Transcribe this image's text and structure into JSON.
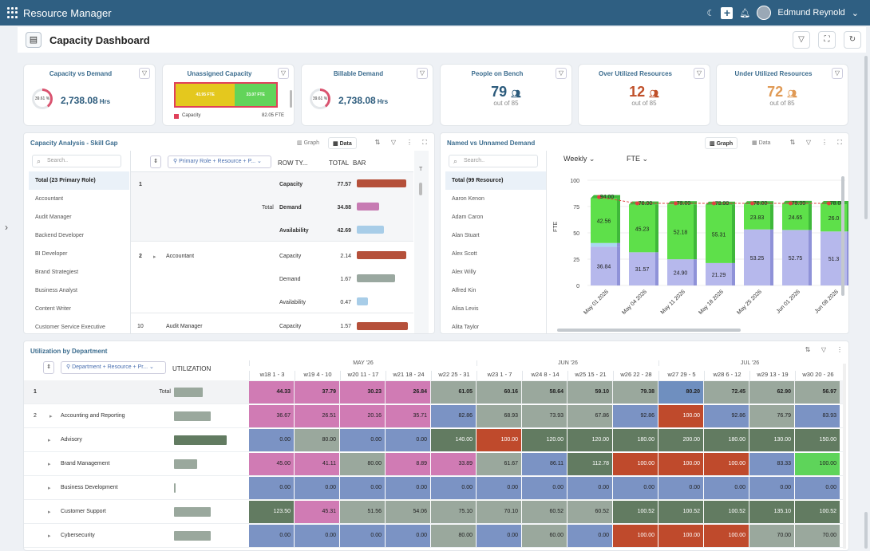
{
  "app": {
    "title": "Resource Manager",
    "user": "Edmund Reynold"
  },
  "page": {
    "title": "Capacity Dashboard"
  },
  "kpis": {
    "capacity_vs_demand": {
      "title": "Capacity vs Demand",
      "donut": "39.61 %",
      "value": "2,738.08",
      "unit": "Hrs"
    },
    "unassigned": {
      "title": "Unassigned Capacity",
      "left": "43.95 FTE",
      "right": "33.07 FTE",
      "legend": "Capacity",
      "legend_value": "82.05 FTE"
    },
    "billable": {
      "title": "Billable Demand",
      "donut": "39.61 %",
      "value": "2,738.08",
      "unit": "Hrs"
    },
    "bench": {
      "title": "People on Bench",
      "value": "79",
      "sub": "out of 85",
      "color": "#2c5b7c"
    },
    "over": {
      "title": "Over Utilized Resources",
      "value": "12",
      "sub": "out of 85",
      "color": "#c0502a"
    },
    "under": {
      "title": "Under Utilized Resources",
      "value": "72",
      "sub": "out of 85",
      "color": "#e09a55"
    }
  },
  "skill_gap": {
    "title": "Capacity Analysis - Skill Gap",
    "graph_label": "Graph",
    "data_label": "Data",
    "search_placeholder": "Search..",
    "roles": [
      "Total (23 Primary Role)",
      "Accountant",
      "Audit Manager",
      "Backend Developer",
      "BI Developer",
      "Brand Strategiest",
      "Business Analyst",
      "Content Writer",
      "Customer Service Executive"
    ],
    "pivot_chip": "Primary Role + Resource + P...",
    "col_row_type": "ROW TY...",
    "col_total": "TOTAL",
    "col_bar": "BAR",
    "row1": {
      "idx": "1",
      "label": "Total",
      "items": [
        {
          "type": "Capacity",
          "value": "77.57",
          "bar": 77.57,
          "color": "#b5503a"
        },
        {
          "type": "Demand",
          "value": "34.88",
          "bar": 34.88,
          "color": "#c77bb3"
        },
        {
          "type": "Availability",
          "value": "42.69",
          "bar": 42.69,
          "color": "#a8cde8"
        }
      ]
    },
    "row2": {
      "idx": "2",
      "label": "Accountant",
      "items": [
        {
          "type": "Capacity",
          "value": "2.14",
          "bar": 77,
          "color": "#b5503a"
        },
        {
          "type": "Demand",
          "value": "1.67",
          "bar": 60,
          "color": "#9aa8a0"
        },
        {
          "type": "Availability",
          "value": "0.47",
          "bar": 17,
          "color": "#a8cde8"
        }
      ]
    },
    "row3": {
      "idx": "10",
      "label": "Audit Manager",
      "type": "Capacity",
      "value": "1.57"
    }
  },
  "named": {
    "title": "Named vs Unnamed Demand",
    "graph_label": "Graph",
    "data_label": "Data",
    "search_placeholder": "Search..",
    "resources": [
      "Total (99 Resource)",
      "Aaron Kenon",
      "Adam Caron",
      "Alan Stuart",
      "Alex Scott",
      "Alex Willy",
      "Alfred Kin",
      "Alisa Levis",
      "Alita Taylor"
    ],
    "period": "Weekly",
    "measure": "FTE"
  },
  "chart_data": {
    "type": "bar",
    "ylabel": "FTE",
    "ylim": [
      0,
      100
    ],
    "yticks": [
      0,
      25,
      50,
      75,
      100
    ],
    "categories": [
      "May 01 2026",
      "May 04 2026",
      "May 11 2026",
      "May 18 2026",
      "May 25 2026",
      "Jun 01 2026",
      "Jun 08 2026"
    ],
    "series": [
      {
        "values": [
          36.84,
          31.57,
          24.9,
          21.29,
          53.25,
          52.75,
          51.3
        ],
        "color": "#b6b8ec"
      },
      {
        "values": [
          3.5,
          0,
          0,
          0,
          0,
          0,
          0
        ],
        "color": "#a9d8f0"
      },
      {
        "values": [
          42.56,
          45.23,
          52.18,
          55.31,
          23.83,
          24.65,
          26.0
        ],
        "color": "#5ee04a"
      }
    ],
    "line": {
      "values": [
        84.0,
        78.0,
        78.0,
        78.0,
        78.0,
        78.0,
        78.0
      ],
      "color": "#e04040"
    },
    "labels": {
      "bottom": [
        "36.84",
        "31.57",
        "24.90",
        "21.29",
        "53.25",
        "52.75",
        "51.3"
      ],
      "top": [
        "42.56",
        "45.23",
        "52.18",
        "55.31",
        "23.83",
        "24.65",
        "26.0"
      ],
      "line": [
        "84.00",
        "78.00",
        "78.00",
        "78.00",
        "78.00",
        "78.00",
        "78.00"
      ]
    }
  },
  "utilization": {
    "title": "Utilization by Department",
    "pivot_chip": "Department + Resource + Pr...",
    "col": "UTILIZATION",
    "months": [
      "MAY '26",
      "JUN '26",
      "JUL '26"
    ],
    "weeks": [
      "w18 1 - 3",
      "w19 4 - 10",
      "w20 11 - 17",
      "w21 18 - 24",
      "w22 25 - 31",
      "w23 1 - 7",
      "w24 8 - 14",
      "w25 15 - 21",
      "w26 22 - 28",
      "w27 29 - 5",
      "w28 6 - 12",
      "w29 13 - 19",
      "w30 20 - 26"
    ],
    "rows": [
      {
        "idx": "1",
        "label": "Total",
        "util": 45,
        "total": true,
        "values": [
          "44.33",
          "37.79",
          "30.23",
          "26.84",
          "61.05",
          "60.16",
          "58.64",
          "59.10",
          "79.38",
          "80.20",
          "72.45",
          "62.90",
          "56.97"
        ],
        "colors": [
          "#d07bb4",
          "#d07bb4",
          "#d07bb4",
          "#d07bb4",
          "#9aa89d",
          "#9aa89d",
          "#9aa89d",
          "#9aa89d",
          "#9aa89d",
          "#6f8fbf",
          "#9aa89d",
          "#9aa89d",
          "#9aa89d"
        ]
      },
      {
        "idx": "2",
        "label": "Accounting and Reporting",
        "util": 58,
        "values": [
          "36.67",
          "26.51",
          "20.16",
          "35.71",
          "82.86",
          "68.93",
          "73.93",
          "67.86",
          "92.86",
          "100.00",
          "92.86",
          "76.79",
          "83.93"
        ],
        "colors": [
          "#d07bb4",
          "#d07bb4",
          "#d07bb4",
          "#d07bb4",
          "#7b93c4",
          "#9aa89d",
          "#9aa89d",
          "#9aa89d",
          "#7b93c4",
          "#bf4a2c",
          "#7b93c4",
          "#9aa89d",
          "#7b93c4"
        ]
      },
      {
        "idx": "",
        "label": "Advisory",
        "util": 82,
        "values": [
          "0.00",
          "80.00",
          "0.00",
          "0.00",
          "140.00",
          "100.00",
          "120.00",
          "120.00",
          "180.00",
          "200.00",
          "180.00",
          "130.00",
          "150.00"
        ],
        "colors": [
          "#7b93c4",
          "#9aa89d",
          "#7b93c4",
          "#7b93c4",
          "#627b61",
          "#bf4a2c",
          "#627b61",
          "#627b61",
          "#627b61",
          "#627b61",
          "#627b61",
          "#627b61",
          "#627b61"
        ]
      },
      {
        "idx": "",
        "label": "Brand Management",
        "util": 36,
        "values": [
          "45.00",
          "41.11",
          "80.00",
          "8.89",
          "33.89",
          "61.67",
          "86.11",
          "112.78",
          "100.00",
          "100.00",
          "100.00",
          "83.33",
          "100.00"
        ],
        "colors": [
          "#d07bb4",
          "#d07bb4",
          "#9aa89d",
          "#d07bb4",
          "#d07bb4",
          "#9aa89d",
          "#7b93c4",
          "#627b61",
          "#bf4a2c",
          "#bf4a2c",
          "#bf4a2c",
          "#7b93c4",
          "#5ed45a"
        ]
      },
      {
        "idx": "",
        "label": "Business Development",
        "util": 3,
        "values": [
          "0.00",
          "0.00",
          "0.00",
          "0.00",
          "0.00",
          "0.00",
          "0.00",
          "0.00",
          "0.00",
          "0.00",
          "0.00",
          "0.00",
          "0.00"
        ],
        "colors": [
          "#7b93c4",
          "#7b93c4",
          "#7b93c4",
          "#7b93c4",
          "#7b93c4",
          "#7b93c4",
          "#7b93c4",
          "#7b93c4",
          "#7b93c4",
          "#7b93c4",
          "#7b93c4",
          "#7b93c4",
          "#7b93c4"
        ]
      },
      {
        "idx": "",
        "label": "Customer Support",
        "util": 58,
        "values": [
          "123.50",
          "45.31",
          "51.56",
          "54.06",
          "75.10",
          "70.10",
          "60.52",
          "60.52",
          "100.52",
          "100.52",
          "100.52",
          "135.10",
          "100.52"
        ],
        "colors": [
          "#627b61",
          "#d07bb4",
          "#9aa89d",
          "#9aa89d",
          "#9aa89d",
          "#9aa89d",
          "#9aa89d",
          "#9aa89d",
          "#627b61",
          "#627b61",
          "#627b61",
          "#627b61",
          "#627b61"
        ]
      },
      {
        "idx": "",
        "label": "Cybersecurity",
        "util": 58,
        "values": [
          "0.00",
          "0.00",
          "0.00",
          "0.00",
          "80.00",
          "0.00",
          "60.00",
          "0.00",
          "100.00",
          "100.00",
          "100.00",
          "70.00",
          "70.00"
        ],
        "colors": [
          "#7b93c4",
          "#7b93c4",
          "#7b93c4",
          "#7b93c4",
          "#9aa89d",
          "#7b93c4",
          "#9aa89d",
          "#7b93c4",
          "#bf4a2c",
          "#bf4a2c",
          "#bf4a2c",
          "#9aa89d",
          "#9aa89d"
        ]
      }
    ]
  }
}
